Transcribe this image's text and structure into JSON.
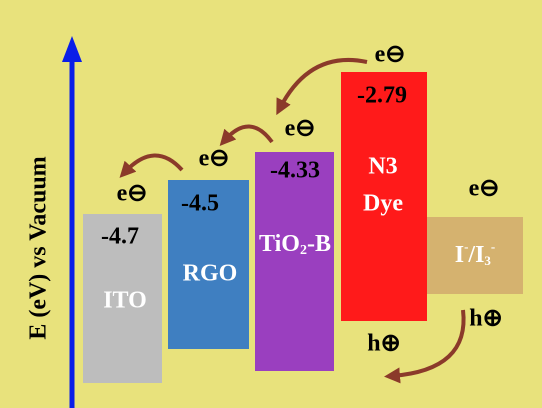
{
  "axis_label": "E (eV) vs Vacuum",
  "levels": [
    {
      "value": "-4.7",
      "name": [
        "ITO"
      ]
    },
    {
      "value": "-4.5",
      "name": [
        "RGO"
      ]
    },
    {
      "value": "-4.33",
      "name": [
        "TiO",
        "2",
        "-B"
      ]
    },
    {
      "value": "-2.79",
      "name": [
        "N3",
        "Dye"
      ]
    },
    {
      "name": [
        "I",
        "-",
        "/I",
        "3",
        "-"
      ]
    }
  ],
  "electron": "e⊖",
  "hole": "h⊕"
}
